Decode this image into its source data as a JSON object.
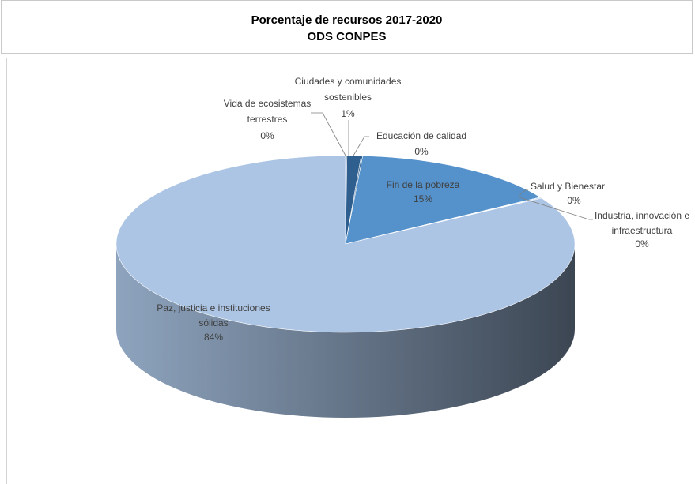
{
  "title": {
    "line1": "Porcentaje de recursos 2017-2020",
    "line2": "ODS CONPES"
  },
  "colors": {
    "slice_dark": "#2f5f8f",
    "slice_mid": "#5591ca",
    "slice_light": "#adc5e4",
    "side_light": "#8ea4be",
    "side_dark": "#3c4653",
    "leader": "#7f7f7f",
    "label_text": "#404040"
  },
  "chart_data": {
    "type": "pie",
    "title": "Porcentaje de recursos 2017-2020 ODS CONPES",
    "slices": [
      {
        "label": "Vida de ecosistemas terrestres",
        "display": "0%",
        "value": 0.1
      },
      {
        "label": "Ciudades y comunidades sostenibles",
        "display": "1%",
        "value": 1
      },
      {
        "label": "Educación de calidad",
        "display": "0%",
        "value": 0.1
      },
      {
        "label": "Fin de la pobreza",
        "display": "15%",
        "value": 15
      },
      {
        "label": "Salud y Bienestar",
        "display": "0%",
        "value": 0.1
      },
      {
        "label": "Industria, innovación e infraestructura",
        "display": "0%",
        "value": 0.1
      },
      {
        "label": "Paz, justicia e instituciones sólidas",
        "display": "84%",
        "value": 84
      }
    ]
  },
  "labels": {
    "vida": {
      "line1": "Vida de ecosistemas",
      "line2": "terrestres",
      "pct": "0%"
    },
    "ciudades": {
      "line1": "Ciudades y comunidades",
      "line2": "sostenibles",
      "pct": "1%"
    },
    "educacion": {
      "line1": "Educación de calidad",
      "pct": "0%"
    },
    "pobreza": {
      "line1": "Fin de la pobreza",
      "pct": "15%"
    },
    "salud": {
      "line1": "Salud y Bienestar",
      "pct": "0%"
    },
    "industria": {
      "line1": "Industria, innovación e",
      "line2": "infraestructura",
      "pct": "0%"
    },
    "paz": {
      "line1": "Paz, justicia e instituciones",
      "line2": "sólidas",
      "pct": "84%"
    }
  }
}
